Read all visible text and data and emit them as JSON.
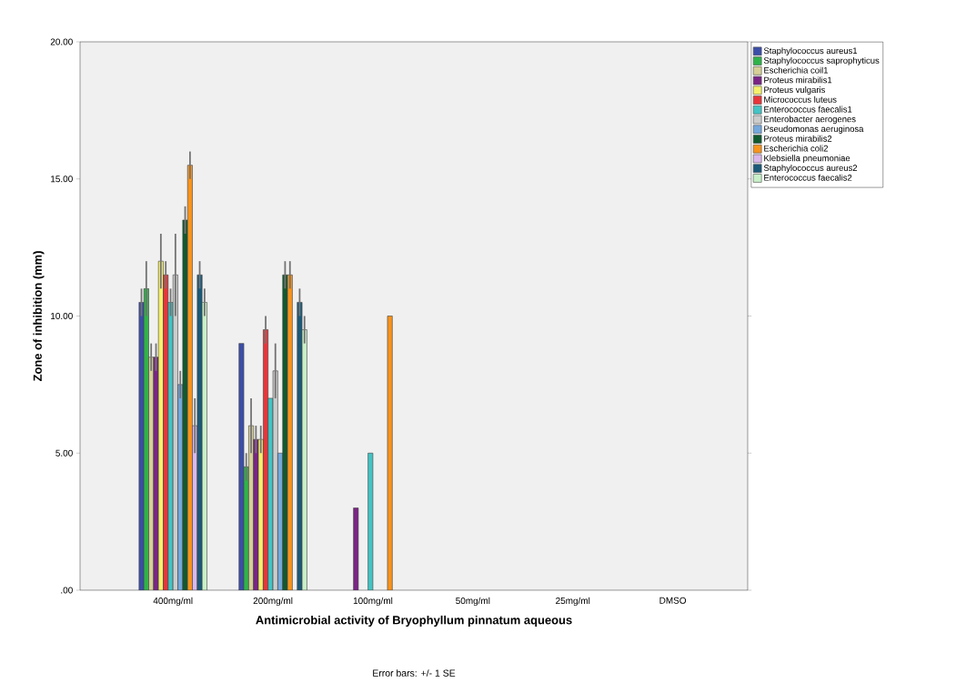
{
  "chart_data": {
    "type": "bar",
    "xlabel": "Antimicrobial activity of Bryophyllum pinnatum aqueous",
    "ylabel": "Zone of inhibition (mm)",
    "annotations": [
      "Error bars: +/- 1 SE"
    ],
    "categories": [
      "400mg/ml",
      "200mg/ml",
      "100mg/ml",
      "50mg/ml",
      "25mg/ml",
      "DMSO"
    ],
    "ylim": [
      0,
      20
    ],
    "yticks": [
      {
        "value": 0,
        "label": ".00"
      },
      {
        "value": 5,
        "label": "5.00"
      },
      {
        "value": 10,
        "label": "10.00"
      },
      {
        "value": 15,
        "label": "15.00"
      },
      {
        "value": 20,
        "label": "20.00"
      }
    ],
    "legend": "right",
    "grid": false,
    "series": [
      {
        "name": "Staphylococcus aureus1",
        "color": "#3b4fa8",
        "values": [
          10.5,
          9,
          0,
          0,
          0,
          0
        ],
        "errors": [
          0.5,
          null,
          null,
          null,
          null,
          null
        ]
      },
      {
        "name": "Staphylococcus saprophyticus",
        "color": "#2fb34a",
        "values": [
          11,
          4.5,
          0,
          0,
          0,
          0
        ],
        "errors": [
          1,
          0.5,
          null,
          null,
          null,
          null
        ]
      },
      {
        "name": "Escherichia coil1",
        "color": "#d6cf96",
        "values": [
          8.5,
          6,
          0,
          0,
          0,
          0
        ],
        "errors": [
          0.5,
          1,
          null,
          null,
          null,
          null
        ]
      },
      {
        "name": "Proteus mirabilis1",
        "color": "#7a2585",
        "values": [
          8.5,
          5.5,
          3,
          0,
          0,
          0
        ],
        "errors": [
          0.5,
          0.5,
          null,
          null,
          null,
          null
        ]
      },
      {
        "name": "Proteus vulgaris",
        "color": "#f5f06a",
        "values": [
          12,
          5.5,
          0,
          0,
          0,
          0
        ],
        "errors": [
          1,
          0.5,
          null,
          null,
          null,
          null
        ]
      },
      {
        "name": "Micrococcus luteus",
        "color": "#e8353a",
        "values": [
          11.5,
          9.5,
          0,
          0,
          0,
          0
        ],
        "errors": [
          0.5,
          0.5,
          null,
          null,
          null,
          null
        ]
      },
      {
        "name": "Enterococcus faecalis1",
        "color": "#44c4c4",
        "values": [
          10.5,
          7,
          5,
          0,
          0,
          0
        ],
        "errors": [
          0.5,
          null,
          null,
          null,
          null,
          null
        ]
      },
      {
        "name": "Enterobacter aerogenes",
        "color": "#cccccc",
        "values": [
          11.5,
          8,
          0,
          0,
          0,
          0
        ],
        "errors": [
          1.5,
          1,
          null,
          null,
          null,
          null
        ]
      },
      {
        "name": "Pseudomonas aeruginosa",
        "color": "#74a8dc",
        "values": [
          7.5,
          5,
          0,
          0,
          0,
          0
        ],
        "errors": [
          0.5,
          null,
          null,
          null,
          null,
          null
        ]
      },
      {
        "name": "Proteus mirabilis2",
        "color": "#0f5a2e",
        "values": [
          13.5,
          11.5,
          0,
          0,
          0,
          0
        ],
        "errors": [
          0.5,
          0.5,
          null,
          null,
          null,
          null
        ]
      },
      {
        "name": "Escherichia coli2",
        "color": "#f7941d",
        "values": [
          15.5,
          11.5,
          10,
          0,
          0,
          0
        ],
        "errors": [
          0.5,
          0.5,
          null,
          null,
          null,
          null
        ]
      },
      {
        "name": "Klebsiella pneumoniae",
        "color": "#dab8ec",
        "values": [
          6,
          0,
          0,
          0,
          0,
          0
        ],
        "errors": [
          1,
          null,
          null,
          null,
          null,
          null
        ]
      },
      {
        "name": "Staphylococcus aureus2",
        "color": "#1b5a78",
        "values": [
          11.5,
          10.5,
          0,
          0,
          0,
          0
        ],
        "errors": [
          0.5,
          0.5,
          null,
          null,
          null,
          null
        ]
      },
      {
        "name": "Enterococcus faecalis2",
        "color": "#c8f0c8",
        "values": [
          10.5,
          9.5,
          0,
          0,
          0,
          0
        ],
        "errors": [
          0.5,
          0.5,
          null,
          null,
          null,
          null
        ]
      }
    ]
  }
}
